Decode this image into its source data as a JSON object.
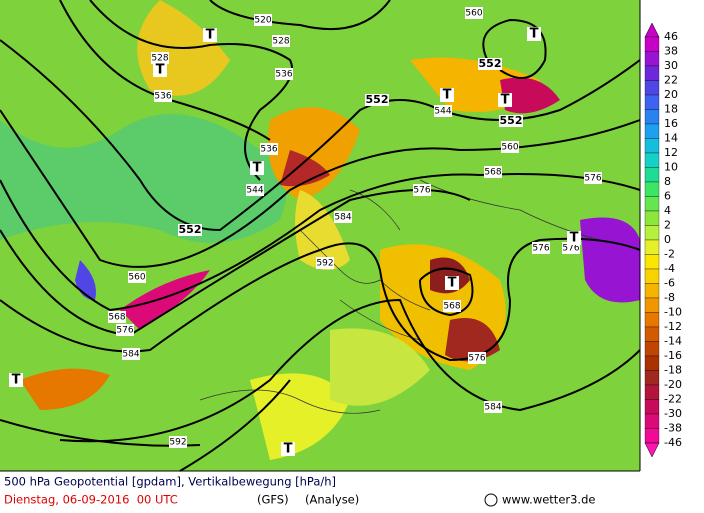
{
  "map": {
    "legend": {
      "levels": [
        46,
        38,
        30,
        22,
        20,
        18,
        16,
        14,
        12,
        10,
        8,
        6,
        4,
        2,
        0,
        -2,
        -4,
        -6,
        -8,
        -10,
        -12,
        -14,
        -16,
        -18,
        -20,
        -22,
        -30,
        -38,
        -46
      ],
      "colors": [
        "#c800c8",
        "#9614d2",
        "#6e28dc",
        "#5046e6",
        "#3c64f0",
        "#2882f0",
        "#1ea0f0",
        "#14bedc",
        "#14d2c8",
        "#1edc96",
        "#3ce664",
        "#64e650",
        "#8ce63c",
        "#b4f03c",
        "#e6f028",
        "#fae600",
        "#fad200",
        "#f5b400",
        "#f09600",
        "#e67800",
        "#d25a00",
        "#be4600",
        "#aa3200",
        "#a0281e",
        "#b4143c",
        "#c80a5a",
        "#dc0a78",
        "#f00a96",
        "#ff14b4"
      ]
    },
    "contour_labels": [
      520,
      528,
      528,
      536,
      536,
      544,
      552,
      552,
      552,
      560,
      560,
      536,
      544,
      552,
      568,
      576,
      576,
      584,
      576,
      576,
      592,
      560,
      568,
      576,
      584,
      568,
      576,
      584,
      592
    ],
    "low_markers": [
      "T",
      "T",
      "T",
      "T",
      "T",
      "T",
      "T",
      "T",
      "T",
      "T"
    ],
    "footer": {
      "title": "500 hPa Geopotential [gpdam], Vertikalbewegung [hPa/h]",
      "date": "Dienstag, 06-09-2016  00 UTC",
      "model": "(GFS)",
      "run": "(Analyse)",
      "site": "www.wetter3.de"
    }
  }
}
